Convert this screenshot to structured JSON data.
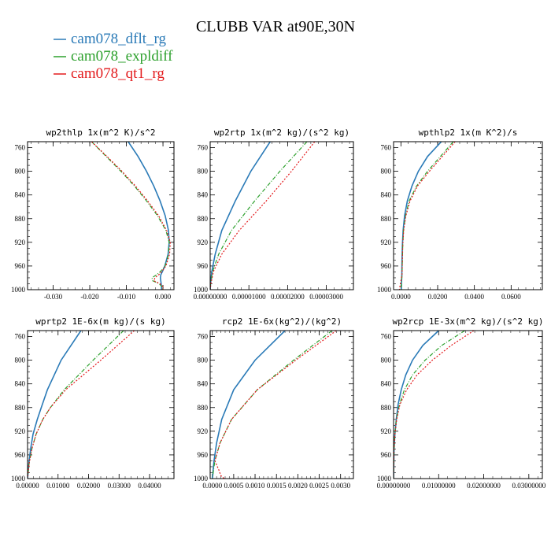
{
  "title": "CLUBB VAR at90E,30N",
  "colors": {
    "dflt": "#2a7ab7",
    "expl": "#2ca02c",
    "qt1": "#e31a1c"
  },
  "legend": [
    {
      "key": "dflt",
      "label": "cam078_dflt_rg"
    },
    {
      "key": "expl",
      "label": "cam078_expldiff"
    },
    {
      "key": "qt1",
      "label": "cam078_qt1_rg"
    }
  ],
  "chart_data": [
    {
      "type": "line",
      "title": "wp2thlp  1x(m^2 K)/s^2",
      "xlim": [
        -0.037,
        0.003
      ],
      "ylim": [
        1000,
        750
      ],
      "xticks": [
        -0.03,
        -0.02,
        -0.01,
        0.0
      ],
      "xtick_labels": [
        "-0.030",
        "-0.020",
        "-0.010",
        "0.000"
      ],
      "yticks": [
        760,
        800,
        840,
        880,
        920,
        960,
        1000
      ],
      "y": [
        750,
        775,
        800,
        825,
        850,
        875,
        900,
        920,
        940,
        960,
        970,
        975,
        980,
        985,
        990,
        995,
        1000
      ],
      "series": [
        {
          "key": "dflt",
          "name": "cam078_dflt_rg",
          "values": [
            -0.0095,
            -0.0068,
            -0.0045,
            -0.0025,
            -0.0008,
            0.0006,
            0.0015,
            0.0017,
            0.0014,
            0.0005,
            -0.0002,
            -0.0006,
            -0.0007,
            -0.0006,
            -0.0005,
            -0.0004,
            -0.0004
          ]
        },
        {
          "key": "expl",
          "name": "cam078_expldiff",
          "values": [
            -0.0195,
            -0.0155,
            -0.0115,
            -0.0078,
            -0.0045,
            -0.0015,
            0.0008,
            0.0017,
            0.0015,
            0.0006,
            -0.0008,
            -0.0018,
            -0.003,
            -0.0028,
            -0.001,
            -0.0003,
            0.0
          ]
        },
        {
          "key": "qt1",
          "name": "cam078_qt1_rg",
          "values": [
            -0.0195,
            -0.0153,
            -0.0112,
            -0.0075,
            -0.0042,
            -0.0012,
            0.001,
            0.002,
            0.0018,
            0.0008,
            -0.0004,
            -0.0012,
            -0.0022,
            -0.0025,
            -0.0008,
            0.0,
            0.0
          ]
        }
      ]
    },
    {
      "type": "line",
      "title": "wp2rtp  1x(m^2 kg)/(s^2 kg)",
      "xlim": [
        0.0,
        3.7e-05
      ],
      "ylim": [
        1000,
        750
      ],
      "xticks": [
        0.0,
        1e-05,
        2e-05,
        3e-05
      ],
      "xtick_labels": [
        "0.00000000",
        "0.00001000",
        "0.00002000",
        "0.00003000"
      ],
      "yticks": [
        760,
        800,
        840,
        880,
        920,
        960,
        1000
      ],
      "y": [
        750,
        800,
        850,
        900,
        940,
        970,
        990,
        1000
      ],
      "series": [
        {
          "key": "dflt",
          "name": "cam078_dflt_rg",
          "values": [
            1.55e-05,
            1.05e-05,
            6.5e-06,
            3e-06,
            1.3e-06,
            4e-07,
            1e-07,
            0.0
          ]
        },
        {
          "key": "expl",
          "name": "cam078_expldiff",
          "values": [
            2.5e-05,
            1.8e-05,
            1.15e-05,
            5.5e-06,
            2.2e-06,
            6e-07,
            1e-07,
            0.0
          ]
        },
        {
          "key": "qt1",
          "name": "cam078_qt1_rg",
          "values": [
            2.7e-05,
            2.1e-05,
            1.45e-05,
            7.5e-06,
            3e-06,
            8e-07,
            2e-07,
            0.0
          ]
        }
      ]
    },
    {
      "type": "line",
      "title": "wpthlp2  1x(m K^2)/s",
      "xlim": [
        -0.004,
        0.077
      ],
      "ylim": [
        1000,
        750
      ],
      "xticks": [
        0.0,
        0.02,
        0.04,
        0.06
      ],
      "xtick_labels": [
        "0.0000",
        "0.0200",
        "0.0400",
        "0.0600"
      ],
      "yticks": [
        760,
        800,
        840,
        880,
        920,
        960,
        1000
      ],
      "y": [
        750,
        775,
        800,
        825,
        850,
        875,
        900,
        925,
        950,
        975,
        990,
        1000
      ],
      "series": [
        {
          "key": "dflt",
          "name": "cam078_dflt_rg",
          "values": [
            0.022,
            0.0145,
            0.0095,
            0.006,
            0.0035,
            0.002,
            0.0012,
            0.0008,
            0.0006,
            0.0005,
            0.0003,
            0.0002
          ]
        },
        {
          "key": "expl",
          "name": "cam078_expldiff",
          "values": [
            0.0285,
            0.0215,
            0.0145,
            0.0085,
            0.0045,
            0.0025,
            0.0014,
            0.001,
            0.0008,
            0.0006,
            0.0003,
            0.0002
          ]
        },
        {
          "key": "qt1",
          "name": "cam078_qt1_rg",
          "values": [
            0.0295,
            0.0225,
            0.0155,
            0.009,
            0.005,
            0.0027,
            0.0015,
            0.001,
            0.0008,
            0.0006,
            -0.0003,
            -0.0008
          ]
        }
      ]
    },
    {
      "type": "line",
      "title": "wprtp2  1E-6x(m kg)/(s kg)",
      "xlim": [
        0.0,
        0.048
      ],
      "ylim": [
        1000,
        750
      ],
      "xticks": [
        0.0,
        0.01,
        0.02,
        0.03,
        0.04
      ],
      "xtick_labels": [
        "0.00000",
        "0.01000",
        "0.02000",
        "0.03000",
        "0.04000"
      ],
      "yticks": [
        760,
        800,
        840,
        880,
        920,
        960,
        1000
      ],
      "y": [
        750,
        800,
        850,
        880,
        900,
        925,
        950,
        975,
        1000
      ],
      "series": [
        {
          "key": "dflt",
          "name": "cam078_dflt_rg",
          "values": [
            0.0175,
            0.011,
            0.0065,
            0.0045,
            0.0032,
            0.0018,
            0.001,
            0.0004,
            0.0
          ]
        },
        {
          "key": "expl",
          "name": "cam078_expldiff",
          "values": [
            0.0315,
            0.0215,
            0.012,
            0.0075,
            0.005,
            0.0028,
            0.0014,
            0.0005,
            0.0
          ]
        },
        {
          "key": "qt1",
          "name": "cam078_qt1_rg",
          "values": [
            0.035,
            0.024,
            0.0125,
            0.0075,
            0.005,
            0.0028,
            0.0014,
            0.0005,
            0.0
          ]
        }
      ]
    },
    {
      "type": "line",
      "title": "rcp2  1E-6x(kg^2)/(kg^2)",
      "xlim": [
        -5e-05,
        0.0033
      ],
      "ylim": [
        1000,
        750
      ],
      "xticks": [
        0.0,
        0.0005,
        0.001,
        0.0015,
        0.002,
        0.0025,
        0.003
      ],
      "xtick_labels": [
        "0.0000",
        "0.0005",
        "0.0010",
        "0.0015",
        "0.0020",
        "0.0025",
        "0.0030"
      ],
      "yticks": [
        760,
        800,
        840,
        880,
        920,
        960,
        1000
      ],
      "y": [
        750,
        800,
        850,
        900,
        940,
        970,
        985,
        995,
        1000
      ],
      "series": [
        {
          "key": "dflt",
          "name": "cam078_dflt_rg",
          "values": [
            0.0017,
            0.001,
            0.0005,
            0.00022,
            0.0001,
            4e-05,
            2e-05,
            1e-05,
            0.0
          ]
        },
        {
          "key": "expl",
          "name": "cam078_expldiff",
          "values": [
            0.0028,
            0.0019,
            0.00105,
            0.00045,
            0.00018,
            6e-05,
            3e-05,
            1e-05,
            0.0
          ]
        },
        {
          "key": "qt1",
          "name": "cam078_qt1_rg",
          "values": [
            0.0029,
            0.00195,
            0.00105,
            0.00045,
            0.00018,
            6e-05,
            0.00015,
            0.0002,
            0.00028
          ]
        }
      ]
    },
    {
      "type": "line",
      "title": "wp2rcp  1E-3x(m^2 kg)/(s^2 kg)",
      "xlim": [
        0.0,
        0.033
      ],
      "ylim": [
        1000,
        750
      ],
      "xticks": [
        0.0,
        0.01,
        0.02,
        0.03
      ],
      "xtick_labels": [
        "0.00000000",
        "0.01000000",
        "0.02000000",
        "0.03000000"
      ],
      "yticks": [
        760,
        800,
        840,
        880,
        920,
        960,
        1000
      ],
      "y": [
        750,
        775,
        800,
        825,
        850,
        875,
        900,
        925,
        950,
        1000
      ],
      "series": [
        {
          "key": "dflt",
          "name": "cam078_dflt_rg",
          "values": [
            0.01,
            0.0065,
            0.0042,
            0.0027,
            0.0017,
            0.001,
            0.0006,
            0.0003,
            0.0001,
            0.0
          ]
        },
        {
          "key": "expl",
          "name": "cam078_expldiff",
          "values": [
            0.0158,
            0.0107,
            0.007,
            0.0042,
            0.0024,
            0.0013,
            0.0006,
            0.0003,
            0.0001,
            0.0
          ]
        },
        {
          "key": "qt1",
          "name": "cam078_qt1_rg",
          "values": [
            0.0178,
            0.0128,
            0.0086,
            0.0052,
            0.0029,
            0.0014,
            0.0007,
            0.0003,
            0.0001,
            0.0
          ]
        }
      ]
    }
  ]
}
